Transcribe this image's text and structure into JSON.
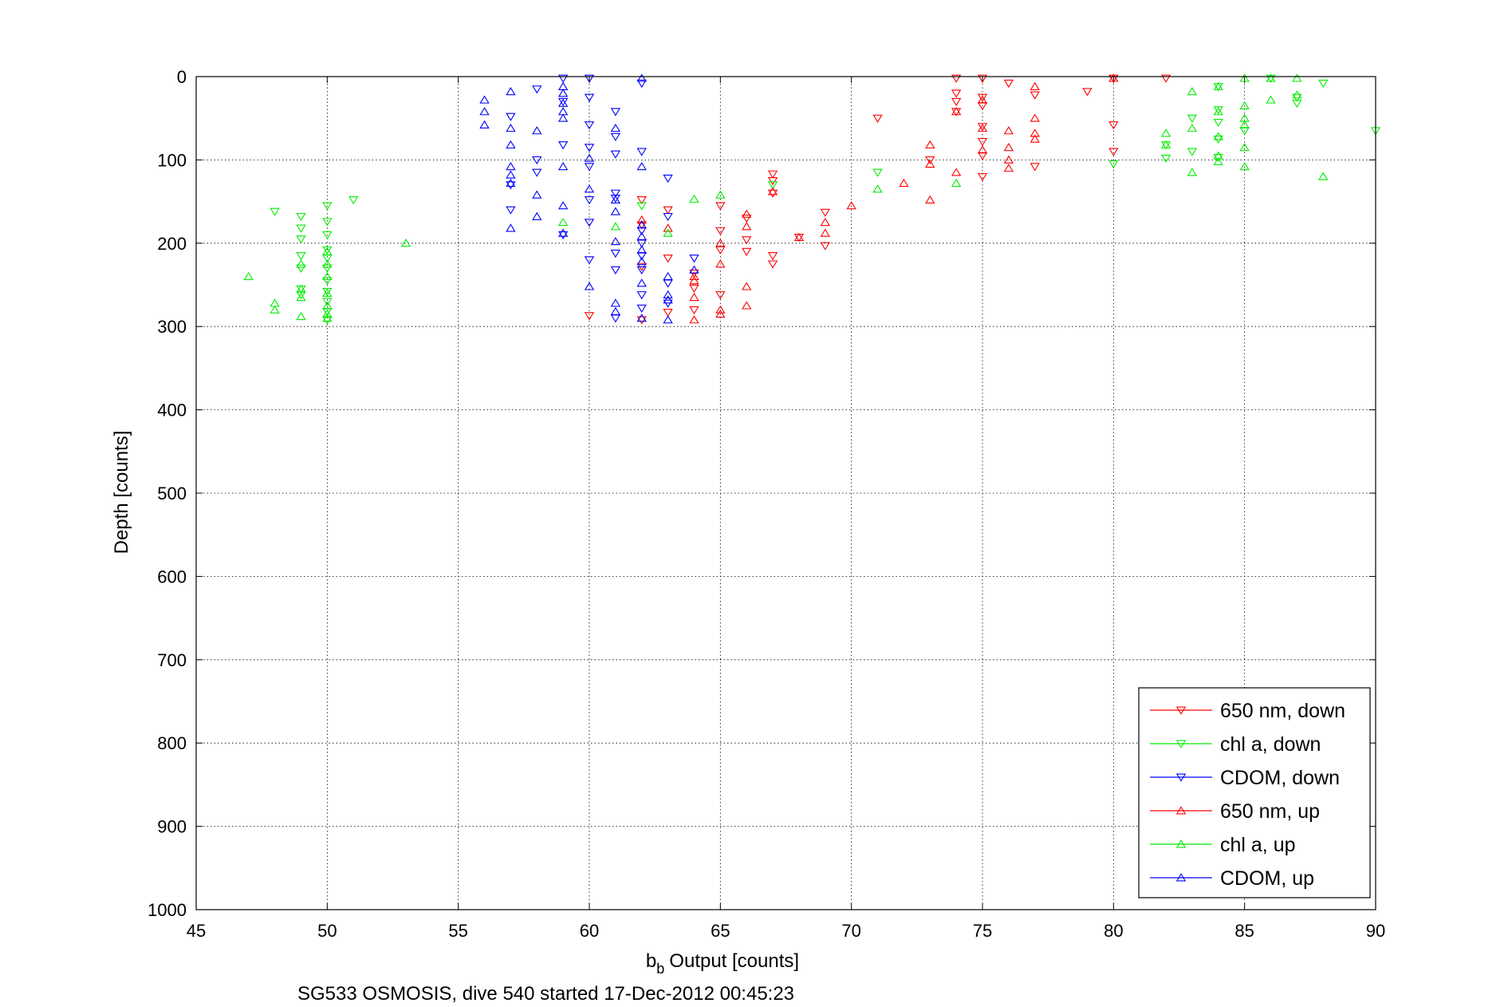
{
  "chart_data": {
    "type": "scatter",
    "xlabel": "Output [counts]",
    "xlabel_sub": "b",
    "xlabel_subsub": "b",
    "ylabel": "Depth [counts]",
    "footer": "SG533 OSMOSIS, dive 540 started 17-Dec-2012 00:45:23",
    "xlim": [
      45,
      90
    ],
    "ylim": [
      0,
      1000
    ],
    "y_reversed": true,
    "grid": true,
    "legend_position": "bottom-right",
    "x_ticks": [
      "45",
      "50",
      "55",
      "60",
      "65",
      "70",
      "75",
      "80",
      "85",
      "90"
    ],
    "y_ticks": [
      "0",
      "100",
      "200",
      "300",
      "400",
      "500",
      "600",
      "700",
      "800",
      "900",
      "1000"
    ],
    "series": [
      {
        "name": "650 nm, down",
        "color": "#ff0000",
        "marker": "triangle-down",
        "points": [
          [
            60,
            287
          ],
          [
            62,
            148
          ],
          [
            62,
            178
          ],
          [
            62,
            228
          ],
          [
            62,
            292
          ],
          [
            63,
            160
          ],
          [
            63,
            218
          ],
          [
            63,
            283
          ],
          [
            64,
            236
          ],
          [
            64,
            254
          ],
          [
            64,
            280
          ],
          [
            65,
            155
          ],
          [
            65,
            185
          ],
          [
            65,
            208
          ],
          [
            65,
            262
          ],
          [
            66,
            170
          ],
          [
            66,
            196
          ],
          [
            66,
            210
          ],
          [
            67,
            117
          ],
          [
            67,
            125
          ],
          [
            67,
            140
          ],
          [
            67,
            215
          ],
          [
            67,
            225
          ],
          [
            68,
            193
          ],
          [
            69,
            163
          ],
          [
            69,
            203
          ],
          [
            71,
            50
          ],
          [
            73,
            100
          ],
          [
            74,
            2
          ],
          [
            74,
            20
          ],
          [
            74,
            30
          ],
          [
            74,
            42
          ],
          [
            75,
            2
          ],
          [
            75,
            25
          ],
          [
            75,
            35
          ],
          [
            75,
            60
          ],
          [
            75,
            78
          ],
          [
            75,
            95
          ],
          [
            75,
            120
          ],
          [
            76,
            8
          ],
          [
            77,
            22
          ],
          [
            77,
            108
          ],
          [
            79,
            18
          ],
          [
            80,
            2
          ],
          [
            80,
            58
          ],
          [
            80,
            90
          ],
          [
            82,
            2
          ]
        ]
      },
      {
        "name": "chl a, down",
        "color": "#00ee00",
        "marker": "triangle-down",
        "points": [
          [
            48,
            162
          ],
          [
            49,
            168
          ],
          [
            49,
            182
          ],
          [
            49,
            195
          ],
          [
            49,
            215
          ],
          [
            49,
            230
          ],
          [
            49,
            255
          ],
          [
            49,
            262
          ],
          [
            50,
            155
          ],
          [
            50,
            174
          ],
          [
            50,
            190
          ],
          [
            50,
            208
          ],
          [
            50,
            218
          ],
          [
            50,
            230
          ],
          [
            50,
            245
          ],
          [
            50,
            258
          ],
          [
            50,
            270
          ],
          [
            50,
            282
          ],
          [
            50,
            292
          ],
          [
            51,
            148
          ],
          [
            62,
            155
          ],
          [
            67,
            130
          ],
          [
            71,
            115
          ],
          [
            80,
            105
          ],
          [
            82,
            82
          ],
          [
            82,
            98
          ],
          [
            83,
            50
          ],
          [
            83,
            90
          ],
          [
            84,
            12
          ],
          [
            84,
            40
          ],
          [
            84,
            55
          ],
          [
            84,
            75
          ],
          [
            84,
            97
          ],
          [
            85,
            65
          ],
          [
            86,
            2
          ],
          [
            87,
            25
          ],
          [
            87,
            32
          ],
          [
            88,
            8
          ],
          [
            90,
            65
          ]
        ]
      },
      {
        "name": "CDOM, down",
        "color": "#0000ff",
        "marker": "triangle-down",
        "points": [
          [
            57,
            48
          ],
          [
            57,
            160
          ],
          [
            57,
            130
          ],
          [
            58,
            15
          ],
          [
            58,
            100
          ],
          [
            58,
            115
          ],
          [
            59,
            2
          ],
          [
            59,
            30
          ],
          [
            59,
            82
          ],
          [
            59,
            190
          ],
          [
            60,
            2
          ],
          [
            60,
            25
          ],
          [
            60,
            58
          ],
          [
            60,
            85
          ],
          [
            60,
            108
          ],
          [
            60,
            148
          ],
          [
            60,
            175
          ],
          [
            60,
            220
          ],
          [
            61,
            42
          ],
          [
            61,
            72
          ],
          [
            61,
            93
          ],
          [
            61,
            140
          ],
          [
            61,
            146
          ],
          [
            61,
            212
          ],
          [
            61,
            232
          ],
          [
            61,
            290
          ],
          [
            62,
            8
          ],
          [
            62,
            90
          ],
          [
            62,
            185
          ],
          [
            62,
            200
          ],
          [
            62,
            215
          ],
          [
            62,
            232
          ],
          [
            62,
            262
          ],
          [
            62,
            278
          ],
          [
            63,
            122
          ],
          [
            63,
            168
          ],
          [
            63,
            248
          ],
          [
            63,
            272
          ],
          [
            64,
            218
          ]
        ]
      },
      {
        "name": "650 nm, up",
        "color": "#ff0000",
        "marker": "triangle-up",
        "points": [
          [
            62,
            172
          ],
          [
            63,
            182
          ],
          [
            64,
            240
          ],
          [
            64,
            245
          ],
          [
            64,
            265
          ],
          [
            64,
            292
          ],
          [
            65,
            225
          ],
          [
            65,
            280
          ],
          [
            65,
            285
          ],
          [
            65,
            200
          ],
          [
            66,
            165
          ],
          [
            66,
            180
          ],
          [
            66,
            252
          ],
          [
            66,
            275
          ],
          [
            67,
            138
          ],
          [
            68,
            193
          ],
          [
            69,
            175
          ],
          [
            69,
            188
          ],
          [
            70,
            155
          ],
          [
            72,
            128
          ],
          [
            73,
            82
          ],
          [
            73,
            105
          ],
          [
            73,
            148
          ],
          [
            74,
            42
          ],
          [
            74,
            115
          ],
          [
            75,
            28
          ],
          [
            75,
            62
          ],
          [
            75,
            88
          ],
          [
            76,
            65
          ],
          [
            76,
            85
          ],
          [
            76,
            100
          ],
          [
            76,
            110
          ],
          [
            77,
            12
          ],
          [
            77,
            50
          ],
          [
            77,
            68
          ],
          [
            77,
            75
          ],
          [
            80,
            2
          ]
        ]
      },
      {
        "name": "chl a, up",
        "color": "#00ee00",
        "marker": "triangle-up",
        "points": [
          [
            47,
            240
          ],
          [
            48,
            272
          ],
          [
            48,
            280
          ],
          [
            49,
            225
          ],
          [
            49,
            255
          ],
          [
            49,
            265
          ],
          [
            49,
            288
          ],
          [
            50,
            210
          ],
          [
            50,
            225
          ],
          [
            50,
            240
          ],
          [
            50,
            260
          ],
          [
            50,
            275
          ],
          [
            50,
            285
          ],
          [
            50,
            290
          ],
          [
            53,
            200
          ],
          [
            59,
            175
          ],
          [
            61,
            180
          ],
          [
            63,
            188
          ],
          [
            64,
            147
          ],
          [
            65,
            142
          ],
          [
            71,
            135
          ],
          [
            74,
            128
          ],
          [
            82,
            68
          ],
          [
            82,
            82
          ],
          [
            83,
            18
          ],
          [
            83,
            62
          ],
          [
            83,
            115
          ],
          [
            84,
            12
          ],
          [
            84,
            95
          ],
          [
            84,
            102
          ],
          [
            85,
            2
          ],
          [
            85,
            35
          ],
          [
            85,
            50
          ],
          [
            85,
            58
          ],
          [
            85,
            85
          ],
          [
            85,
            108
          ],
          [
            86,
            28
          ],
          [
            86,
            2
          ],
          [
            87,
            2
          ],
          [
            87,
            22
          ],
          [
            88,
            120
          ],
          [
            84,
            72
          ],
          [
            84,
            42
          ]
        ]
      },
      {
        "name": "CDOM, up",
        "color": "#0000ff",
        "marker": "triangle-up",
        "points": [
          [
            56,
            28
          ],
          [
            56,
            42
          ],
          [
            56,
            58
          ],
          [
            57,
            18
          ],
          [
            57,
            62
          ],
          [
            57,
            82
          ],
          [
            57,
            108
          ],
          [
            57,
            118
          ],
          [
            57,
            128
          ],
          [
            57,
            182
          ],
          [
            58,
            65
          ],
          [
            58,
            142
          ],
          [
            58,
            168
          ],
          [
            59,
            12
          ],
          [
            59,
            20
          ],
          [
            59,
            32
          ],
          [
            59,
            42
          ],
          [
            59,
            50
          ],
          [
            59,
            108
          ],
          [
            59,
            155
          ],
          [
            59,
            188
          ],
          [
            60,
            98
          ],
          [
            60,
            135
          ],
          [
            60,
            252
          ],
          [
            61,
            62
          ],
          [
            61,
            148
          ],
          [
            61,
            162
          ],
          [
            61,
            198
          ],
          [
            61,
            272
          ],
          [
            61,
            282
          ],
          [
            62,
            2
          ],
          [
            62,
            108
          ],
          [
            62,
            178
          ],
          [
            62,
            192
          ],
          [
            62,
            208
          ],
          [
            62,
            222
          ],
          [
            62,
            248
          ],
          [
            62,
            290
          ],
          [
            63,
            240
          ],
          [
            63,
            262
          ],
          [
            63,
            268
          ],
          [
            63,
            292
          ],
          [
            64,
            232
          ]
        ]
      }
    ]
  }
}
